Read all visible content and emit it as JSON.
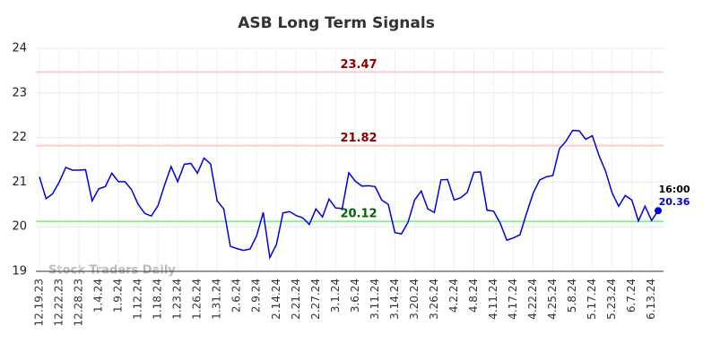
{
  "chart_data": {
    "type": "line",
    "title": "ASB Long Term Signals",
    "categories": [
      "12.19.23",
      null,
      null,
      "12.22.23",
      null,
      null,
      "12.28.23",
      null,
      null,
      "1.4.24",
      null,
      null,
      "1.9.24",
      null,
      null,
      "1.12.24",
      null,
      null,
      "1.18.24",
      null,
      null,
      "1.23.24",
      null,
      null,
      "1.26.24",
      null,
      null,
      "1.31.24",
      null,
      null,
      "2.6.24",
      null,
      null,
      "2.9.24",
      null,
      null,
      "2.14.24",
      null,
      null,
      "2.21.24",
      null,
      null,
      "2.27.24",
      null,
      null,
      "3.1.24",
      null,
      null,
      "3.6.24",
      null,
      null,
      "3.11.24",
      null,
      null,
      "3.14.24",
      null,
      null,
      "3.20.24",
      null,
      null,
      "3.26.24",
      null,
      null,
      "4.2.24",
      null,
      null,
      "4.8.24",
      null,
      null,
      "4.11.24",
      null,
      null,
      "4.17.24",
      null,
      null,
      "4.22.24",
      null,
      null,
      "4.25.24",
      null,
      null,
      "5.8.24",
      null,
      null,
      "5.17.24",
      null,
      null,
      "5.23.24",
      null,
      null,
      "6.7.24",
      null,
      null,
      "6.13.24",
      null
    ],
    "values": [
      21.12,
      20.63,
      20.74,
      21.0,
      21.33,
      21.27,
      21.27,
      21.28,
      20.58,
      20.85,
      20.9,
      21.2,
      21.01,
      21.01,
      20.83,
      20.5,
      20.3,
      20.24,
      20.47,
      20.93,
      21.35,
      21.01,
      21.4,
      21.42,
      21.2,
      21.54,
      21.41,
      20.58,
      20.4,
      19.56,
      19.51,
      19.47,
      19.5,
      19.8,
      20.32,
      19.31,
      19.6,
      20.31,
      20.34,
      20.25,
      20.2,
      20.05,
      20.4,
      20.22,
      20.62,
      20.42,
      20.41,
      21.21,
      21.02,
      20.91,
      20.92,
      20.9,
      20.6,
      20.5,
      19.87,
      19.84,
      20.1,
      20.6,
      20.8,
      20.4,
      20.32,
      21.05,
      21.06,
      20.6,
      20.65,
      20.77,
      21.22,
      21.23,
      20.37,
      20.35,
      20.08,
      19.7,
      19.75,
      19.82,
      20.3,
      20.75,
      21.05,
      21.12,
      21.15,
      21.75,
      21.92,
      22.16,
      22.15,
      21.96,
      22.04,
      21.6,
      21.25,
      20.76,
      20.46,
      20.7,
      20.6,
      20.13,
      20.46,
      20.14,
      20.36
    ],
    "color": "#0000dd",
    "ylim": [
      19,
      24
    ],
    "yticks": [
      19,
      20,
      21,
      22,
      23,
      24
    ],
    "grid": true,
    "hlines": [
      {
        "value": 23.47,
        "color": "#ffcccc",
        "text_color": "#8b0000"
      },
      {
        "value": 21.82,
        "color": "#ffcccc",
        "text_color": "#8b0000"
      },
      {
        "value": 20.12,
        "color": "#90ee90",
        "text_color": "#006400"
      }
    ],
    "last_time": "16:00",
    "watermark": "Stock Traders Daily"
  }
}
